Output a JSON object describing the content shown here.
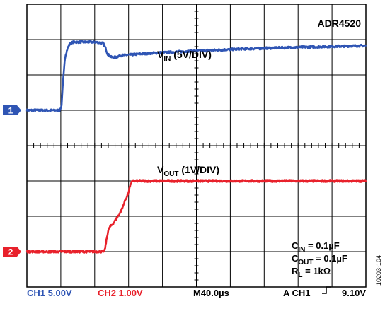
{
  "chart_data": {
    "type": "line",
    "device": "ADR4520",
    "x_units": "µs",
    "x_range": [
      0,
      400
    ],
    "y_range": [
      -4,
      4
    ],
    "grid": true,
    "grid_divisions": {
      "x": 10,
      "y": 8
    },
    "series": [
      {
        "channel": "1",
        "color": "#2f55b4",
        "label": {
          "main": "V",
          "sub": "IN",
          "rest": " (5V/DIV)"
        },
        "marker_level": 1.0,
        "points": [
          [
            0,
            1.0
          ],
          [
            39,
            1.0
          ],
          [
            41,
            1.15
          ],
          [
            42,
            1.6
          ],
          [
            45,
            2.5
          ],
          [
            46,
            2.6
          ],
          [
            48,
            2.75
          ],
          [
            50,
            2.85
          ],
          [
            52,
            2.9
          ],
          [
            55,
            2.93
          ],
          [
            80,
            2.93
          ],
          [
            90,
            2.9
          ],
          [
            93,
            2.75
          ],
          [
            95,
            2.6
          ],
          [
            98,
            2.53
          ],
          [
            100,
            2.5
          ],
          [
            105,
            2.5
          ],
          [
            110,
            2.55
          ],
          [
            150,
            2.62
          ],
          [
            200,
            2.68
          ],
          [
            250,
            2.73
          ],
          [
            300,
            2.77
          ],
          [
            350,
            2.8
          ],
          [
            400,
            2.83
          ]
        ]
      },
      {
        "channel": "2",
        "color": "#e8212b",
        "label": {
          "main": "V",
          "sub": "OUT",
          "rest": " (1V/DIV)"
        },
        "marker_level": -3.0,
        "points": [
          [
            0,
            -3.0
          ],
          [
            90,
            -3.0
          ],
          [
            92,
            -2.95
          ],
          [
            94,
            -2.65
          ],
          [
            96,
            -2.4
          ],
          [
            98,
            -2.3
          ],
          [
            102,
            -2.2
          ],
          [
            106,
            -2.05
          ],
          [
            110,
            -1.9
          ],
          [
            113,
            -1.75
          ],
          [
            115,
            -1.6
          ],
          [
            117,
            -1.5
          ],
          [
            119,
            -1.4
          ],
          [
            121,
            -1.2
          ],
          [
            123,
            -1.05
          ],
          [
            125,
            -1.0
          ],
          [
            400,
            -1.0
          ]
        ]
      }
    ],
    "annotations": [
      {
        "main": "C",
        "sub": "IN",
        "rest": " = 0.1µF"
      },
      {
        "main": "C",
        "sub": "OUT",
        "rest": " = 0.1µF"
      },
      {
        "main": "R",
        "sub": "L",
        "rest": " = 1kΩ"
      }
    ],
    "footer": {
      "ch1": "CH1  5.00V",
      "ch2": "CH2  1.00V",
      "timebase": "M40.0µs",
      "trigger_prefix": "A  CH1",
      "trigger_value": "9.10V"
    },
    "figure_id": "10203-104",
    "colors": {
      "ch1": "#2f55b4",
      "ch2": "#e8212b",
      "text": "#000000"
    }
  }
}
